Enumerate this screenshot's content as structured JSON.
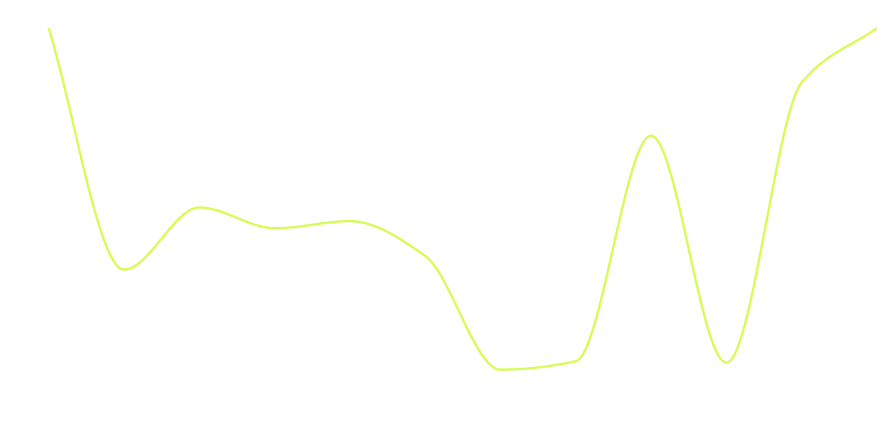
{
  "chart_data": {
    "type": "line",
    "title": "",
    "xlabel": "",
    "ylabel": "",
    "grid": false,
    "legend": "none",
    "x": [
      0,
      1,
      2,
      3,
      4,
      5,
      6,
      7,
      8,
      9,
      10,
      11
    ],
    "ylim": [
      0,
      100
    ],
    "series": [
      {
        "color": "#d9fb5a",
        "values": [
          100,
          29.3,
          47.5,
          41.4,
          43.5,
          33.3,
          0,
          2.5,
          68.5,
          2.1,
          84.1,
          100
        ]
      }
    ]
  }
}
